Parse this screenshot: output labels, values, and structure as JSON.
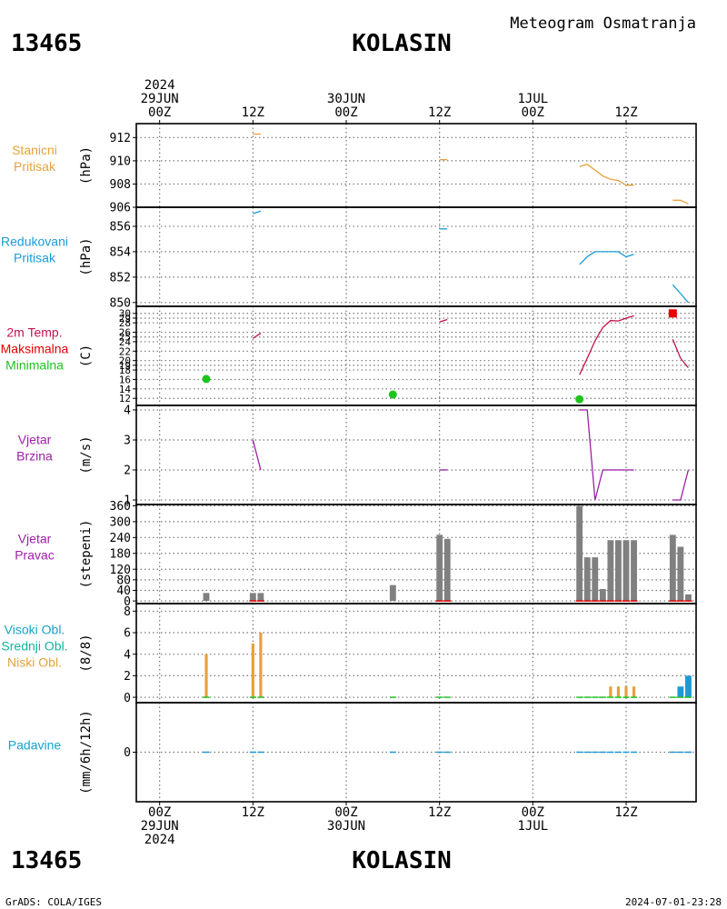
{
  "header": {
    "station_id": "13465",
    "station_name": "KOLASIN",
    "product": "Meteogram Osmatranja"
  },
  "footer": {
    "station_id": "13465",
    "station_name": "KOLASIN",
    "credit": "GrADS: COLA/IGES",
    "timestamp": "2024-07-01-23:28"
  },
  "time_axis": {
    "top_labels": [
      {
        "hour": 0,
        "lines": [
          "2024",
          "29JUN",
          "00Z"
        ]
      },
      {
        "hour": 12,
        "lines": [
          "12Z"
        ]
      },
      {
        "hour": 24,
        "lines": [
          "30JUN",
          "00Z"
        ]
      },
      {
        "hour": 36,
        "lines": [
          "12Z"
        ]
      },
      {
        "hour": 48,
        "lines": [
          "1JUL",
          "00Z"
        ]
      },
      {
        "hour": 60,
        "lines": [
          "12Z"
        ]
      }
    ],
    "bottom_labels": [
      {
        "hour": 0,
        "lines": [
          "00Z",
          "29JUN",
          "2024"
        ]
      },
      {
        "hour": 12,
        "lines": [
          "12Z"
        ]
      },
      {
        "hour": 24,
        "lines": [
          "00Z",
          "30JUN"
        ]
      },
      {
        "hour": 36,
        "lines": [
          "12Z"
        ]
      },
      {
        "hour": 48,
        "lines": [
          "00Z",
          "1JUL"
        ]
      },
      {
        "hour": 60,
        "lines": [
          "12Z"
        ]
      }
    ],
    "range_hours": [
      -3,
      69
    ]
  },
  "chart_data": [
    {
      "id": "station-pressure",
      "type": "line",
      "title_lines": [
        {
          "text": "Stanicni",
          "color": "#e6a23c"
        },
        {
          "text": "Pritisak",
          "color": "#e6a23c"
        }
      ],
      "ylabel": "(hPa)",
      "ylim": [
        906,
        913.2
      ],
      "yticks": [
        906,
        908,
        910,
        912
      ],
      "series": [
        {
          "color": "#e6a23c",
          "points": [
            [
              12,
              912.3
            ],
            [
              13,
              912.3
            ]
          ]
        },
        {
          "color": "#e6a23c",
          "points": [
            [
              36,
              910.1
            ],
            [
              37,
              910.1
            ]
          ]
        },
        {
          "color": "#e6a23c",
          "points": [
            [
              54,
              909.5
            ],
            [
              55,
              909.7
            ],
            [
              56,
              909.2
            ],
            [
              57,
              908.7
            ],
            [
              58,
              908.4
            ],
            [
              59,
              908.3
            ],
            [
              60,
              907.9
            ],
            [
              61,
              907.9
            ]
          ]
        },
        {
          "color": "#e6a23c",
          "points": [
            [
              66,
              906.6
            ],
            [
              67,
              906.6
            ],
            [
              68,
              906.3
            ]
          ]
        }
      ]
    },
    {
      "id": "reduced-pressure",
      "type": "line",
      "title_lines": [
        {
          "text": "Redukovani",
          "color": "#1a9bd7"
        },
        {
          "text": "Pritisak",
          "color": "#1a9bd7"
        }
      ],
      "ylabel": "(hPa)",
      "ylim": [
        849.7,
        857.5
      ],
      "yticks": [
        850,
        852,
        854,
        856
      ],
      "series": [
        {
          "color": "#1a9bd7",
          "points": [
            [
              12,
              857.0
            ],
            [
              13,
              857.2
            ]
          ]
        },
        {
          "color": "#1a9bd7",
          "points": [
            [
              36,
              855.8
            ],
            [
              37,
              855.8
            ]
          ]
        },
        {
          "color": "#1a9bd7",
          "points": [
            [
              54,
              853.0
            ],
            [
              55,
              853.6
            ],
            [
              56,
              854.0
            ],
            [
              57,
              854.0
            ],
            [
              58,
              854.0
            ],
            [
              59,
              854.0
            ],
            [
              60,
              853.6
            ],
            [
              61,
              853.8
            ]
          ]
        },
        {
          "color": "#1a9bd7",
          "points": [
            [
              66,
              851.4
            ],
            [
              67,
              850.7
            ],
            [
              68,
              850.0
            ]
          ]
        }
      ]
    },
    {
      "id": "temperature",
      "type": "line",
      "title_lines": [
        {
          "text": "2m Temp.",
          "color": "#c0144c"
        },
        {
          "text": "Maksimalna",
          "color": "#e60000"
        },
        {
          "text": "Minimalna",
          "color": "#1cc41c"
        }
      ],
      "ylabel": "(C)",
      "ylim": [
        10.5,
        31.5
      ],
      "yticks": [
        12,
        14,
        16,
        18,
        19,
        20,
        22,
        24,
        25,
        26,
        28,
        29,
        30
      ],
      "series": [
        {
          "color": "#c0144c",
          "points": [
            [
              12,
              24.7
            ],
            [
              13,
              25.8
            ]
          ]
        },
        {
          "color": "#c0144c",
          "points": [
            [
              36,
              28.2
            ],
            [
              37,
              28.7
            ]
          ]
        },
        {
          "color": "#c0144c",
          "points": [
            [
              54,
              17.0
            ],
            [
              55,
              20.5
            ],
            [
              56,
              24.2
            ],
            [
              57,
              27.0
            ],
            [
              58,
              28.5
            ],
            [
              59,
              28.4
            ],
            [
              60,
              29.0
            ],
            [
              61,
              29.5
            ]
          ]
        },
        {
          "color": "#c0144c",
          "points": [
            [
              66,
              24.5
            ],
            [
              67,
              20.5
            ],
            [
              68,
              18.5
            ]
          ]
        }
      ],
      "max_points": [
        {
          "x": 66,
          "y": 30.0,
          "color": "#e60000"
        }
      ],
      "min_points": [
        {
          "x": 6,
          "y": 16.1,
          "color": "#1cc41c"
        },
        {
          "x": 30,
          "y": 12.8,
          "color": "#1cc41c"
        },
        {
          "x": 54,
          "y": 11.8,
          "color": "#1cc41c"
        }
      ]
    },
    {
      "id": "wind-speed",
      "type": "line",
      "title_lines": [
        {
          "text": "Vjetar",
          "color": "#9d1ea8"
        },
        {
          "text": "Brzina",
          "color": "#9d1ea8"
        }
      ],
      "ylabel": "(m/s)",
      "ylim": [
        0.85,
        4.15
      ],
      "yticks": [
        1,
        2,
        3,
        4
      ],
      "series": [
        {
          "color": "#9d1ea8",
          "points": [
            [
              12,
              3.0
            ],
            [
              13,
              2.0
            ]
          ]
        },
        {
          "color": "#9d1ea8",
          "points": [
            [
              36,
              2.0
            ],
            [
              37,
              2.0
            ]
          ]
        },
        {
          "color": "#9d1ea8",
          "points": [
            [
              54,
              4.0
            ],
            [
              55,
              4.0
            ],
            [
              56,
              1.0
            ],
            [
              57,
              2.0
            ],
            [
              58,
              2.0
            ],
            [
              59,
              2.0
            ],
            [
              60,
              2.0
            ],
            [
              61,
              2.0
            ]
          ]
        },
        {
          "color": "#9d1ea8",
          "points": [
            [
              66,
              1.0
            ],
            [
              67,
              1.0
            ],
            [
              68,
              2.0
            ]
          ]
        }
      ]
    },
    {
      "id": "wind-direction",
      "type": "bar",
      "title_lines": [
        {
          "text": "Vjetar",
          "color": "#9d1ea8"
        },
        {
          "text": "Pravac",
          "color": "#9d1ea8"
        }
      ],
      "ylabel": "(stepeni)",
      "ylim": [
        -10,
        365
      ],
      "yticks": [
        0,
        40,
        80,
        120,
        180,
        240,
        300,
        360
      ],
      "bar_color": "#808080",
      "bars": [
        {
          "x": 6,
          "y": 30
        },
        {
          "x": 12,
          "y": 30
        },
        {
          "x": 13,
          "y": 30
        },
        {
          "x": 30,
          "y": 60
        },
        {
          "x": 36,
          "y": 250
        },
        {
          "x": 37,
          "y": 235
        },
        {
          "x": 54,
          "y": 360
        },
        {
          "x": 55,
          "y": 165
        },
        {
          "x": 56,
          "y": 165
        },
        {
          "x": 57,
          "y": 45
        },
        {
          "x": 58,
          "y": 230
        },
        {
          "x": 59,
          "y": 230
        },
        {
          "x": 60,
          "y": 230
        },
        {
          "x": 61,
          "y": 230
        },
        {
          "x": 66,
          "y": 250
        },
        {
          "x": 67,
          "y": 205
        },
        {
          "x": 68,
          "y": 25
        }
      ],
      "calm_marks": [
        12,
        13,
        36,
        37,
        54,
        55,
        56,
        57,
        58,
        59,
        60,
        61,
        66,
        67,
        68
      ],
      "calm_color": "#e60000"
    },
    {
      "id": "cloud-cover",
      "type": "bar",
      "title_lines": [
        {
          "text": "Visoki Obl.",
          "color": "#17a2c7"
        },
        {
          "text": "Srednji Obl.",
          "color": "#12b3a0"
        },
        {
          "text": "Niski Obl.",
          "color": "#e6a23c"
        }
      ],
      "ylabel": "(8/8)",
      "ylim": [
        -0.5,
        8.7
      ],
      "yticks": [
        0,
        2,
        4,
        6,
        8
      ],
      "low_color": "#e6a23c",
      "high_color": "#1a9bd7",
      "low_bars": [
        {
          "x": 6,
          "y": 4
        },
        {
          "x": 12,
          "y": 5
        },
        {
          "x": 13,
          "y": 6
        },
        {
          "x": 58,
          "y": 1
        },
        {
          "x": 59,
          "y": 1
        },
        {
          "x": 60,
          "y": 1
        },
        {
          "x": 61,
          "y": 1
        }
      ],
      "high_bars": [
        {
          "x": 67,
          "y": 1
        },
        {
          "x": 68,
          "y": 2
        }
      ],
      "zero_marks": [
        6,
        12,
        13,
        30,
        36,
        37,
        54,
        55,
        56,
        57,
        58,
        59,
        60,
        61,
        66,
        67,
        68
      ],
      "zero_color": "#1cc41c"
    },
    {
      "id": "precipitation",
      "type": "bar",
      "title_lines": [
        {
          "text": "Padavine",
          "color": "#17a2c7"
        }
      ],
      "ylabel": "(mm/6h/12h)",
      "ylim": [
        -5,
        5
      ],
      "yticks": [
        0
      ],
      "zero_marks": [
        6,
        12,
        13,
        30,
        36,
        37,
        54,
        55,
        56,
        57,
        58,
        59,
        60,
        61,
        66,
        67,
        68
      ],
      "zero_color": "#1a9bd7"
    }
  ]
}
